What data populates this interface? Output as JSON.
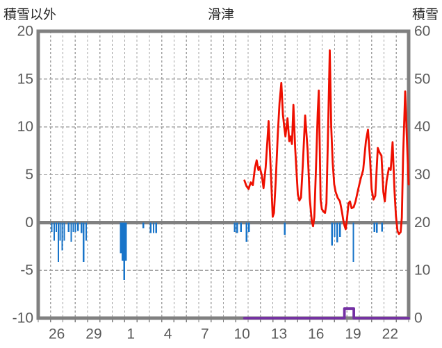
{
  "header": {
    "left_label": "積雪以外",
    "title": "滑津",
    "right_label": "積雪"
  },
  "colors": {
    "background": "#ffffff",
    "frame": "#808080",
    "grid": "#a3a3a3",
    "zero_line": "#808080",
    "tick_text": "#595959",
    "title_text": "#262626",
    "bar": "#1874c9",
    "red_line": "#ee0f00",
    "snow_line": "#7430a3"
  },
  "chart_data": {
    "type": "bar+line combo (weather station, 30 days)",
    "title": "滑津",
    "x_axis": {
      "span_days": 30,
      "gridline_every_days": 1,
      "tick_labels": [
        "26",
        "29",
        "1",
        "4",
        "7",
        "10",
        "13",
        "16",
        "19",
        "22"
      ],
      "tick_day_index": [
        1.5,
        4.5,
        7.5,
        10.5,
        13.5,
        16.5,
        19.5,
        22.5,
        25.5,
        28.5
      ]
    },
    "left_axis": {
      "label": "積雪以外",
      "range": [
        -10,
        20
      ],
      "ticks": [
        20,
        15,
        10,
        5,
        0,
        -5,
        -10
      ],
      "h_gridlines_at": [
        15,
        10,
        5,
        -5
      ],
      "zero_line_at": 0
    },
    "right_axis": {
      "label": "積雪",
      "range": [
        0,
        60
      ],
      "ticks": [
        60,
        50,
        40,
        30,
        20,
        10,
        0
      ]
    },
    "series": [
      {
        "name": "blue-bars-left-axis",
        "type": "bar",
        "axis": "left",
        "bar_width_days": 0.13,
        "points": [
          [
            1.1,
            -1.0
          ],
          [
            1.29,
            -1.9
          ],
          [
            1.46,
            -1.0
          ],
          [
            1.63,
            -4.1
          ],
          [
            1.77,
            -1.9
          ],
          [
            1.94,
            -2.9
          ],
          [
            2.11,
            -1.9
          ],
          [
            2.47,
            -1.0
          ],
          [
            2.67,
            -2.0
          ],
          [
            2.84,
            -1.0
          ],
          [
            3.01,
            -1.0
          ],
          [
            3.23,
            -0.9
          ],
          [
            3.51,
            -1.1
          ],
          [
            3.68,
            -4.1
          ],
          [
            3.88,
            -1.9
          ],
          [
            6.69,
            -3.2
          ],
          [
            6.83,
            -4.0
          ],
          [
            6.97,
            -6.0
          ],
          [
            7.11,
            -4.0
          ],
          [
            8.52,
            -0.6
          ],
          [
            9.11,
            -1.1
          ],
          [
            9.34,
            -1.1
          ],
          [
            9.56,
            -1.1
          ],
          [
            15.92,
            -1.0
          ],
          [
            16.11,
            -1.1
          ],
          [
            16.42,
            -1.0
          ],
          [
            16.87,
            -2.0
          ],
          [
            17.07,
            -1.0
          ],
          [
            19.97,
            -1.3
          ],
          [
            23.79,
            -2.4
          ],
          [
            24.01,
            -1.5
          ],
          [
            24.21,
            -2.1
          ],
          [
            24.44,
            -1.5
          ],
          [
            25.53,
            -4.1
          ],
          [
            27.22,
            -1.0
          ],
          [
            27.42,
            -1.05
          ],
          [
            27.84,
            -0.95
          ]
        ]
      },
      {
        "name": "red-line-left-axis",
        "type": "line",
        "axis": "left",
        "points": [
          [
            16.7,
            4.4
          ],
          [
            16.87,
            3.8
          ],
          [
            17.04,
            3.5
          ],
          [
            17.21,
            4.2
          ],
          [
            17.38,
            3.9
          ],
          [
            17.55,
            5.7
          ],
          [
            17.69,
            6.5
          ],
          [
            17.83,
            5.5
          ],
          [
            17.94,
            5.8
          ],
          [
            18.11,
            4.9
          ],
          [
            18.25,
            3.6
          ],
          [
            18.42,
            5.8
          ],
          [
            18.56,
            8.5
          ],
          [
            18.66,
            10.6
          ],
          [
            18.79,
            6.8
          ],
          [
            18.9,
            3.4
          ],
          [
            18.99,
            0.6
          ],
          [
            19.09,
            1.0
          ],
          [
            19.24,
            4.4
          ],
          [
            19.4,
            9.2
          ],
          [
            19.54,
            12.5
          ],
          [
            19.69,
            14.6
          ],
          [
            19.82,
            11.3
          ],
          [
            19.91,
            10.2
          ],
          [
            20.02,
            9.0
          ],
          [
            20.19,
            10.9
          ],
          [
            20.33,
            8.5
          ],
          [
            20.44,
            9.0
          ],
          [
            20.55,
            8.2
          ],
          [
            20.67,
            12.3
          ],
          [
            20.81,
            7.8
          ],
          [
            20.92,
            5.3
          ],
          [
            21.03,
            2.9
          ],
          [
            21.15,
            2.3
          ],
          [
            21.28,
            2.6
          ],
          [
            21.43,
            6.0
          ],
          [
            21.62,
            11.2
          ],
          [
            21.82,
            7.5
          ],
          [
            21.99,
            2.5
          ],
          [
            22.16,
            0.1
          ],
          [
            22.26,
            -0.4
          ],
          [
            22.36,
            0.6
          ],
          [
            22.5,
            6.0
          ],
          [
            22.64,
            11.5
          ],
          [
            22.72,
            13.8
          ],
          [
            22.81,
            7.0
          ],
          [
            22.87,
            2.4
          ],
          [
            22.97,
            1.4
          ],
          [
            23.14,
            1.1
          ],
          [
            23.23,
            1.0
          ],
          [
            23.34,
            2.0
          ],
          [
            23.45,
            8.0
          ],
          [
            23.61,
            18.0
          ],
          [
            23.73,
            10.0
          ],
          [
            23.85,
            6.3
          ],
          [
            23.97,
            4.0
          ],
          [
            24.09,
            3.2
          ],
          [
            24.25,
            2.6
          ],
          [
            24.44,
            2.2
          ],
          [
            24.6,
            1.1
          ],
          [
            24.7,
            0.3
          ],
          [
            24.8,
            -0.3
          ],
          [
            24.9,
            -0.7
          ],
          [
            25.0,
            0.3
          ],
          [
            25.13,
            2.0
          ],
          [
            25.25,
            2.2
          ],
          [
            25.38,
            1.5
          ],
          [
            25.55,
            1.6
          ],
          [
            25.7,
            2.2
          ],
          [
            25.9,
            3.4
          ],
          [
            26.1,
            4.5
          ],
          [
            26.32,
            5.5
          ],
          [
            26.54,
            8.5
          ],
          [
            26.71,
            9.7
          ],
          [
            26.88,
            6.5
          ],
          [
            27.0,
            3.5
          ],
          [
            27.15,
            2.4
          ],
          [
            27.3,
            2.8
          ],
          [
            27.5,
            7.8
          ],
          [
            27.65,
            7.3
          ],
          [
            27.8,
            7.0
          ],
          [
            27.95,
            3.2
          ],
          [
            28.07,
            2.2
          ],
          [
            28.22,
            4.4
          ],
          [
            28.4,
            5.7
          ],
          [
            28.55,
            5.5
          ],
          [
            28.7,
            8.4
          ],
          [
            28.85,
            3.4
          ],
          [
            28.97,
            0.7
          ],
          [
            29.1,
            -0.9
          ],
          [
            29.22,
            -1.2
          ],
          [
            29.35,
            -1.0
          ],
          [
            29.45,
            0.5
          ],
          [
            29.55,
            6.8
          ],
          [
            29.72,
            13.7
          ],
          [
            29.86,
            8.7
          ],
          [
            30.0,
            4.0
          ]
        ]
      },
      {
        "name": "purple-snow-depth-right-axis",
        "type": "step-line",
        "axis": "right",
        "points": [
          [
            16.7,
            0
          ],
          [
            24.8,
            0
          ],
          [
            24.8,
            2
          ],
          [
            25.56,
            2
          ],
          [
            25.56,
            0
          ],
          [
            30.0,
            0
          ]
        ]
      }
    ]
  }
}
